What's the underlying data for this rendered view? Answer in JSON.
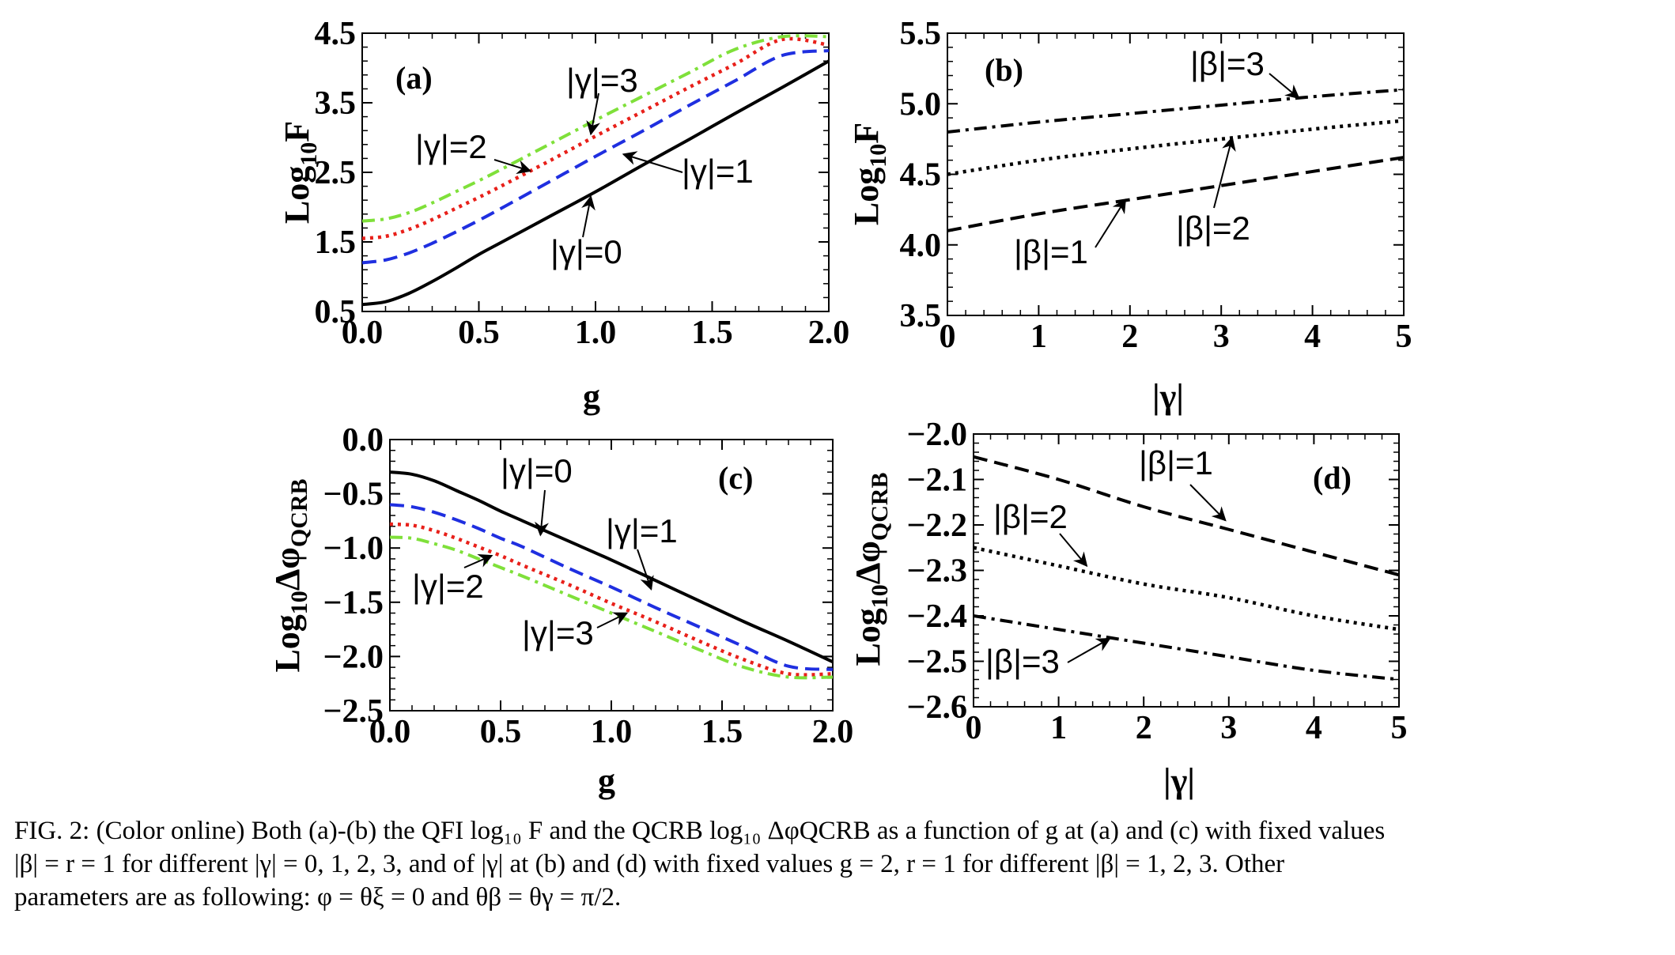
{
  "caption": {
    "lines": [
      "FIG. 2: (Color online) Both (a)-(b) the QFI log₁₀ F and the QCRB log₁₀ ΔφQCRB as a function of g at (a) and (c) with fixed values",
      "|β| = r = 1 for different |γ| = 0, 1, 2, 3, and of |γ| at (b) and (d) with fixed values g = 2, r = 1 for different |β| = 1, 2, 3. Other",
      "parameters are as following: φ = θξ = 0 and θβ = θγ = π/2."
    ]
  },
  "colors": {
    "black": "#000000",
    "blue": "#1f2fe0",
    "red": "#e8201a",
    "green": "#7fe03a"
  },
  "chart_data": [
    {
      "id": "a",
      "type": "line",
      "tag": "(a)",
      "xlabel": "g",
      "ylabel": "Log10F",
      "xlim": [
        0.0,
        2.0
      ],
      "ylim": [
        0.5,
        4.5
      ],
      "xticks": [
        "0.0",
        "0.5",
        "1.0",
        "1.5",
        "2.0"
      ],
      "yticks": [
        "0.5",
        "1.5",
        "2.5",
        "3.5",
        "4.5"
      ],
      "xtick_values": [
        0.0,
        0.5,
        1.0,
        1.5,
        2.0
      ],
      "ytick_values": [
        0.5,
        1.5,
        2.5,
        3.5,
        4.5
      ],
      "x": [
        0.0,
        0.1,
        0.2,
        0.3,
        0.4,
        0.5,
        0.6,
        0.8,
        1.0,
        1.2,
        1.4,
        1.6,
        1.8,
        2.0
      ],
      "series": [
        {
          "label": "|γ|=0",
          "color": "black",
          "dash": "solid",
          "values": [
            0.6,
            0.64,
            0.76,
            0.93,
            1.12,
            1.32,
            1.5,
            1.86,
            2.22,
            2.6,
            2.97,
            3.35,
            3.72,
            4.1
          ]
        },
        {
          "label": "|γ|=1",
          "color": "blue",
          "dash": "dashed",
          "values": [
            1.2,
            1.24,
            1.34,
            1.48,
            1.64,
            1.81,
            1.99,
            2.36,
            2.73,
            3.09,
            3.46,
            3.82,
            4.18,
            4.25
          ]
        },
        {
          "label": "|γ|=2",
          "color": "red",
          "dash": "dotted",
          "values": [
            1.55,
            1.58,
            1.68,
            1.82,
            1.98,
            2.14,
            2.31,
            2.66,
            3.02,
            3.37,
            3.72,
            4.06,
            4.41,
            4.33
          ]
        },
        {
          "label": "|γ|=3",
          "color": "green",
          "dash": "dashdot",
          "values": [
            1.8,
            1.83,
            1.92,
            2.06,
            2.22,
            2.38,
            2.55,
            2.9,
            3.25,
            3.59,
            3.93,
            4.27,
            4.45,
            4.45
          ]
        }
      ]
    },
    {
      "id": "b",
      "type": "line",
      "tag": "(b)",
      "xlabel": "|γ|",
      "ylabel": "Log10F",
      "xlim": [
        0,
        5
      ],
      "ylim": [
        3.5,
        5.5
      ],
      "xticks": [
        "0",
        "1",
        "2",
        "3",
        "4",
        "5"
      ],
      "yticks": [
        "3.5",
        "4.0",
        "4.5",
        "5.0",
        "5.5"
      ],
      "xtick_values": [
        0,
        1,
        2,
        3,
        4,
        5
      ],
      "ytick_values": [
        3.5,
        4.0,
        4.5,
        5.0,
        5.5
      ],
      "x": [
        0,
        1,
        2,
        3,
        4,
        5
      ],
      "series": [
        {
          "label": "|β|=1",
          "color": "black",
          "dash": "dashed",
          "values": [
            4.1,
            4.22,
            4.32,
            4.42,
            4.52,
            4.62
          ]
        },
        {
          "label": "|β|=2",
          "color": "black",
          "dash": "dotted",
          "values": [
            4.5,
            4.6,
            4.68,
            4.75,
            4.82,
            4.88
          ]
        },
        {
          "label": "|β|=3",
          "color": "black",
          "dash": "dashdot",
          "values": [
            4.8,
            4.87,
            4.93,
            4.99,
            5.05,
            5.1
          ]
        }
      ]
    },
    {
      "id": "c",
      "type": "line",
      "tag": "(c)",
      "xlabel": "g",
      "ylabel": "Log10ΔφQCRB",
      "xlim": [
        0.0,
        2.0
      ],
      "ylim": [
        -2.5,
        0.0
      ],
      "xticks": [
        "0.0",
        "0.5",
        "1.0",
        "1.5",
        "2.0"
      ],
      "yticks": [
        "0.0",
        "−0.5",
        "−1.0",
        "−1.5",
        "−2.0",
        "−2.5"
      ],
      "xtick_values": [
        0.0,
        0.5,
        1.0,
        1.5,
        2.0
      ],
      "ytick_values": [
        0.0,
        -0.5,
        -1.0,
        -1.5,
        -2.0,
        -2.5
      ],
      "x": [
        0.0,
        0.1,
        0.2,
        0.3,
        0.4,
        0.5,
        0.6,
        0.8,
        1.0,
        1.2,
        1.4,
        1.6,
        1.8,
        2.0
      ],
      "series": [
        {
          "label": "|γ|=0",
          "color": "black",
          "dash": "solid",
          "values": [
            -0.3,
            -0.32,
            -0.38,
            -0.47,
            -0.56,
            -0.66,
            -0.75,
            -0.93,
            -1.11,
            -1.3,
            -1.49,
            -1.68,
            -1.86,
            -2.05
          ]
        },
        {
          "label": "|γ|=1",
          "color": "blue",
          "dash": "dashed",
          "values": [
            -0.6,
            -0.62,
            -0.67,
            -0.74,
            -0.82,
            -0.91,
            -0.99,
            -1.18,
            -1.36,
            -1.55,
            -1.73,
            -1.91,
            -2.09,
            -2.12
          ]
        },
        {
          "label": "|γ|=2",
          "color": "red",
          "dash": "dotted",
          "values": [
            -0.78,
            -0.79,
            -0.84,
            -0.91,
            -0.99,
            -1.07,
            -1.16,
            -1.33,
            -1.51,
            -1.68,
            -1.86,
            -2.03,
            -2.16,
            -2.16
          ]
        },
        {
          "label": "|γ|=3",
          "color": "green",
          "dash": "dashdot",
          "values": [
            -0.9,
            -0.91,
            -0.96,
            -1.02,
            -1.1,
            -1.18,
            -1.26,
            -1.43,
            -1.6,
            -1.77,
            -1.94,
            -2.1,
            -2.19,
            -2.19
          ]
        }
      ]
    },
    {
      "id": "d",
      "type": "line",
      "tag": "(d)",
      "xlabel": "|γ|",
      "ylabel": "Log10ΔφQCRB",
      "xlim": [
        0,
        5
      ],
      "ylim": [
        -2.6,
        -2.0
      ],
      "xticks": [
        "0",
        "1",
        "2",
        "3",
        "4",
        "5"
      ],
      "yticks": [
        "−2.0",
        "−2.1",
        "−2.2",
        "−2.3",
        "−2.4",
        "−2.5",
        "−2.6"
      ],
      "xtick_values": [
        0,
        1,
        2,
        3,
        4,
        5
      ],
      "ytick_values": [
        -2.0,
        -2.1,
        -2.2,
        -2.3,
        -2.4,
        -2.5,
        -2.6
      ],
      "x": [
        0,
        1,
        2,
        3,
        4,
        5
      ],
      "series": [
        {
          "label": "|β|=1",
          "color": "black",
          "dash": "dashed",
          "values": [
            -2.05,
            -2.1,
            -2.16,
            -2.21,
            -2.26,
            -2.31
          ]
        },
        {
          "label": "|β|=2",
          "color": "black",
          "dash": "dotted",
          "values": [
            -2.25,
            -2.29,
            -2.33,
            -2.36,
            -2.4,
            -2.43
          ]
        },
        {
          "label": "|β|=3",
          "color": "black",
          "dash": "dashdot",
          "values": [
            -2.4,
            -2.43,
            -2.46,
            -2.49,
            -2.52,
            -2.54
          ]
        }
      ]
    }
  ]
}
